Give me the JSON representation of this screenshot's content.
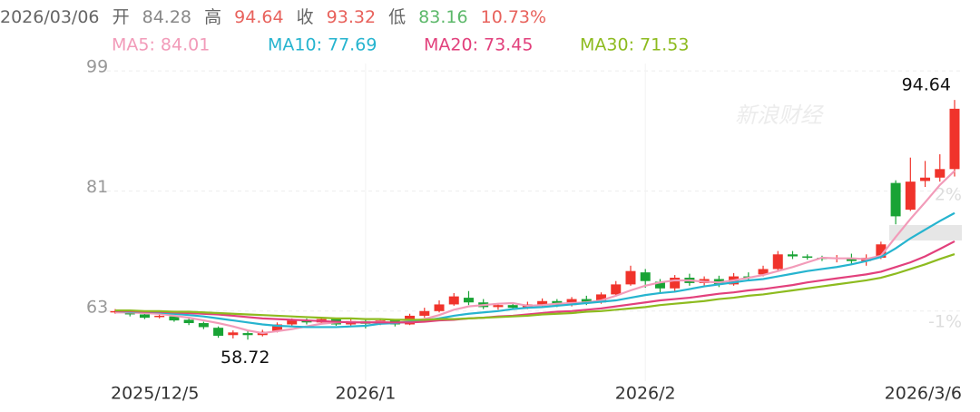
{
  "header": {
    "date": "2026/03/06",
    "open_label": "开",
    "open": "84.28",
    "high_label": "高",
    "high": "94.64",
    "close_label": "收",
    "close": "93.32",
    "low_label": "低",
    "low": "83.16",
    "change": "10.73%"
  },
  "chart_data": {
    "type": "candlestick",
    "watermark": "新浪财经",
    "categories": [
      "2025/12/5",
      null,
      null,
      null,
      null,
      null,
      null,
      null,
      null,
      null,
      null,
      null,
      null,
      null,
      null,
      null,
      null,
      "2026/1",
      null,
      null,
      null,
      null,
      null,
      null,
      null,
      null,
      null,
      null,
      null,
      null,
      null,
      null,
      null,
      null,
      null,
      null,
      "2026/2",
      null,
      null,
      null,
      null,
      null,
      null,
      null,
      null,
      null,
      null,
      null,
      null,
      null,
      null,
      null,
      null,
      null,
      null,
      null,
      null,
      "2026/3/6"
    ],
    "open": [
      62.8,
      62.9,
      62.5,
      62.1,
      62.2,
      61.7,
      61.2,
      60.5,
      59.4,
      59.7,
      59.4,
      60.0,
      61.0,
      61.6,
      61.3,
      61.8,
      61.0,
      61.5,
      61.1,
      61.6,
      61.0,
      62.3,
      63.0,
      64.0,
      65.0,
      64.3,
      63.6,
      63.9,
      63.5,
      64.0,
      64.5,
      63.9,
      64.8,
      64.3,
      65.5,
      67.0,
      68.8,
      67.4,
      66.4,
      68.0,
      67.2,
      67.8,
      67.0,
      68.2,
      68.5,
      69.3,
      71.5,
      71.2,
      71.0,
      70.8,
      71.0,
      70.5,
      71.0,
      82.2,
      78.2,
      82.5,
      83.0,
      84.28
    ],
    "close": [
      63.0,
      62.5,
      62.0,
      62.3,
      61.6,
      61.2,
      60.6,
      59.3,
      59.8,
      59.4,
      59.9,
      61.0,
      61.6,
      61.3,
      61.8,
      61.0,
      61.5,
      61.1,
      61.6,
      61.0,
      62.3,
      63.0,
      64.0,
      65.2,
      64.3,
      63.6,
      63.9,
      63.5,
      64.0,
      64.5,
      63.9,
      64.8,
      64.3,
      65.5,
      67.0,
      69.0,
      67.5,
      66.4,
      68.0,
      67.2,
      67.8,
      67.0,
      68.2,
      68.0,
      69.3,
      71.5,
      71.2,
      71.0,
      70.8,
      71.0,
      70.5,
      71.0,
      73.0,
      77.2,
      82.4,
      83.0,
      84.28,
      93.32
    ],
    "high": [
      63.3,
      63.1,
      62.7,
      62.6,
      62.4,
      61.9,
      61.4,
      60.7,
      60.1,
      60.0,
      60.2,
      61.3,
      61.9,
      61.9,
      62.1,
      62.0,
      61.8,
      61.8,
      61.9,
      61.8,
      62.6,
      63.5,
      64.6,
      65.7,
      66.0,
      64.8,
      64.2,
      64.3,
      64.4,
      64.9,
      64.8,
      65.1,
      65.3,
      65.8,
      67.5,
      69.8,
      69.3,
      67.8,
      68.4,
      68.6,
      68.2,
      68.3,
      68.7,
      68.8,
      69.8,
      72.0,
      72.0,
      71.5,
      71.3,
      71.4,
      71.6,
      71.5,
      73.4,
      82.6,
      86.0,
      85.5,
      86.5,
      94.64
    ],
    "low": [
      62.6,
      62.2,
      61.8,
      61.9,
      61.4,
      60.9,
      60.3,
      59.0,
      58.9,
      58.72,
      59.2,
      59.8,
      60.8,
      61.0,
      61.1,
      60.8,
      60.6,
      60.4,
      60.9,
      60.7,
      60.9,
      62.0,
      62.8,
      63.8,
      63.9,
      63.3,
      63.2,
      63.2,
      63.3,
      63.7,
      63.6,
      63.7,
      63.9,
      64.1,
      65.2,
      66.8,
      66.5,
      65.7,
      66.0,
      66.8,
      66.8,
      66.6,
      66.8,
      67.7,
      68.2,
      69.0,
      70.8,
      70.7,
      70.5,
      70.3,
      70.1,
      69.8,
      70.8,
      76.0,
      78.0,
      81.6,
      82.4,
      83.16
    ],
    "up_color": "#f0332b",
    "down_color": "#19a335",
    "series": [
      {
        "name": "MA5: 84.01",
        "color": "#f29bb9",
        "values": [
          62.8,
          62.8,
          62.7,
          62.6,
          62.3,
          62.0,
          61.6,
          61.2,
          60.7,
          60.1,
          59.7,
          60.0,
          60.3,
          60.7,
          61.1,
          61.3,
          61.4,
          61.3,
          61.4,
          61.2,
          61.5,
          61.8,
          62.4,
          63.2,
          63.7,
          63.9,
          64.1,
          64.2,
          63.8,
          63.9,
          64.1,
          64.2,
          64.3,
          64.6,
          65.3,
          66.1,
          66.8,
          67.3,
          67.6,
          67.6,
          67.4,
          67.3,
          67.6,
          68.0,
          68.4,
          69.0,
          69.6,
          70.3,
          71.0,
          70.9,
          70.9,
          70.8,
          71.3,
          74.1,
          76.8,
          79.3,
          81.9,
          84.01
        ]
      },
      {
        "name": "MA10: 77.69",
        "color": "#26b4cf",
        "values": [
          63.0,
          62.9,
          62.9,
          62.8,
          62.6,
          62.4,
          62.2,
          61.9,
          61.6,
          61.3,
          61.0,
          60.8,
          60.7,
          60.6,
          60.6,
          60.6,
          60.7,
          60.8,
          61.1,
          61.2,
          61.4,
          61.6,
          61.9,
          62.3,
          62.6,
          62.8,
          63.0,
          63.3,
          63.5,
          63.6,
          63.8,
          64.0,
          64.2,
          64.4,
          64.6,
          65.0,
          65.4,
          65.7,
          65.9,
          66.3,
          66.7,
          67.0,
          67.3,
          67.6,
          67.8,
          68.2,
          68.6,
          69.0,
          69.3,
          69.6,
          70.0,
          70.5,
          71.1,
          72.4,
          73.9,
          75.2,
          76.5,
          77.69
        ]
      },
      {
        "name": "MA20: 73.45",
        "color": "#e2407c",
        "values": [
          63.0,
          63.0,
          62.9,
          62.9,
          62.8,
          62.7,
          62.6,
          62.5,
          62.3,
          62.1,
          61.9,
          61.8,
          61.7,
          61.6,
          61.5,
          61.4,
          61.3,
          61.3,
          61.3,
          61.3,
          61.3,
          61.4,
          61.6,
          61.7,
          61.9,
          62.0,
          62.2,
          62.3,
          62.5,
          62.7,
          62.9,
          63.0,
          63.2,
          63.4,
          63.7,
          64.0,
          64.3,
          64.6,
          64.8,
          65.0,
          65.3,
          65.6,
          65.8,
          66.1,
          66.3,
          66.6,
          66.9,
          67.3,
          67.6,
          67.9,
          68.2,
          68.5,
          68.9,
          69.6,
          70.3,
          71.2,
          72.3,
          73.45
        ]
      },
      {
        "name": "MA30: 71.53",
        "color": "#8dbb1f",
        "values": [
          63.1,
          63.1,
          63.0,
          63.0,
          62.9,
          62.9,
          62.8,
          62.7,
          62.6,
          62.5,
          62.4,
          62.3,
          62.2,
          62.1,
          62.0,
          61.9,
          61.9,
          61.8,
          61.8,
          61.7,
          61.7,
          61.7,
          61.8,
          61.8,
          61.9,
          62.0,
          62.1,
          62.2,
          62.3,
          62.5,
          62.6,
          62.7,
          62.9,
          63.0,
          63.2,
          63.4,
          63.6,
          63.9,
          64.1,
          64.3,
          64.5,
          64.8,
          65.0,
          65.3,
          65.5,
          65.8,
          66.1,
          66.4,
          66.7,
          67.0,
          67.3,
          67.6,
          68.0,
          68.6,
          69.3,
          70.0,
          70.8,
          71.53
        ]
      }
    ],
    "ylim": [
      52.5,
      100.1
    ],
    "yticks": [
      63,
      81,
      99
    ],
    "y2lim": [
      -2.39,
      5.1
    ],
    "y2ticks": [
      {
        "value": -1,
        "label": "-1%"
      },
      {
        "value": 2,
        "label": "2%"
      }
    ],
    "grid": true
  }
}
